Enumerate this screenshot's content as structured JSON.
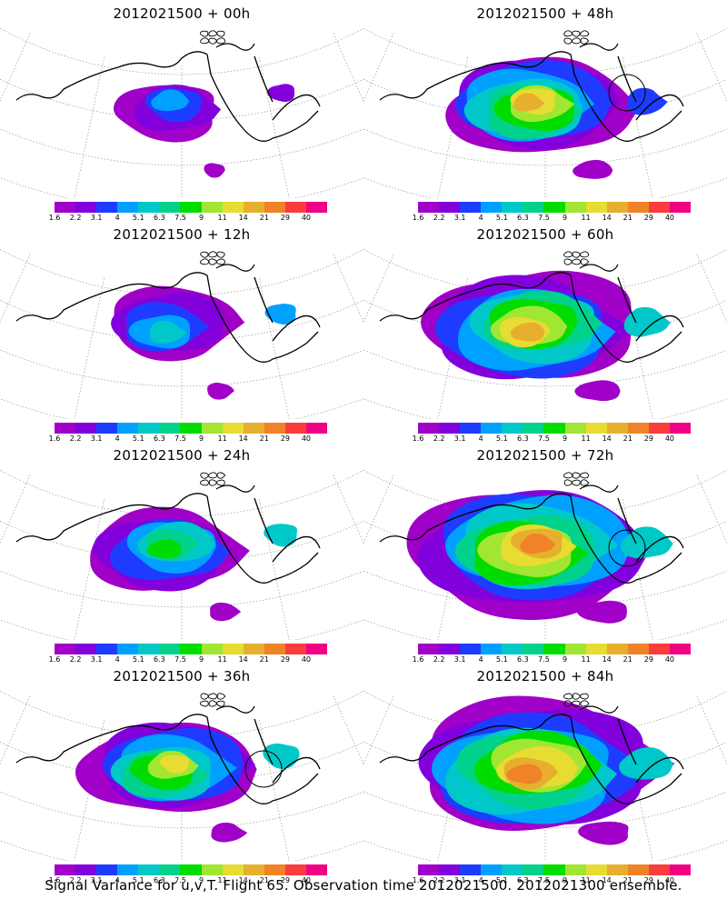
{
  "figure": {
    "caption": "Signal Variance for u,v,T. Flight 65. Observation time 2012021500. 2012021300 ensemble.",
    "colorbar": {
      "labels": [
        "1.6",
        "2.2",
        "3.1",
        "4",
        "5.1",
        "6.3",
        "7.5",
        "9",
        "11",
        "14",
        "21",
        "29",
        "40"
      ],
      "colors": [
        "#a000c8",
        "#8200dc",
        "#1e3cff",
        "#00a0ff",
        "#00c8c8",
        "#00d28c",
        "#00dc00",
        "#a0e632",
        "#e6dc32",
        "#e6af2d",
        "#f08228",
        "#fa3c3c",
        "#f00082"
      ]
    },
    "panels": [
      {
        "title": "2012021500 + 00h"
      },
      {
        "title": "2012021500 + 48h"
      },
      {
        "title": "2012021500 + 12h"
      },
      {
        "title": "2012021500 + 60h"
      },
      {
        "title": "2012021500 + 24h"
      },
      {
        "title": "2012021500 + 72h"
      },
      {
        "title": "2012021500 + 36h"
      },
      {
        "title": "2012021500 + 84h"
      }
    ]
  }
}
